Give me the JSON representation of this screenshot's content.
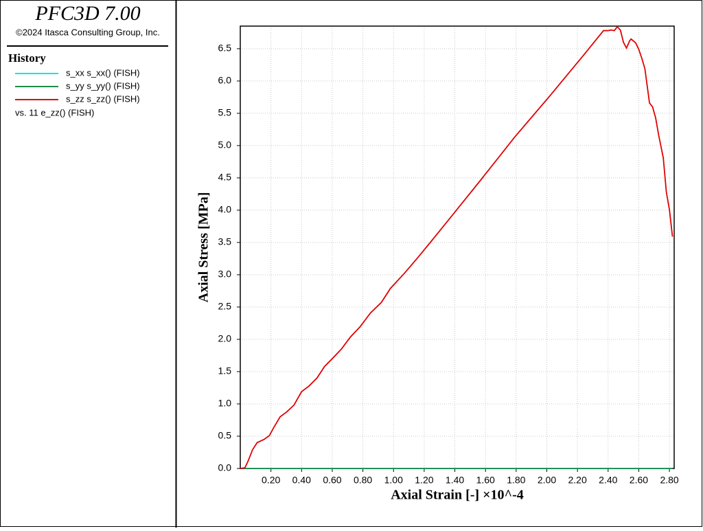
{
  "header": {
    "title": "PFC3D 7.00",
    "copyright": "©2024 Itasca Consulting Group, Inc."
  },
  "chart_data": {
    "type": "line",
    "legend_title": "History",
    "versus": "vs. 11 e_zz() (FISH)",
    "x_label": "Axial Strain [-] ×10^-4",
    "y_label": "Axial Stress [MPa]",
    "grid": true,
    "xlim": [
      0,
      2.831
    ],
    "ylim": [
      0,
      6.85
    ],
    "xticks": [
      {
        "value": 0.2,
        "label": "0.20"
      },
      {
        "value": 0.4,
        "label": "0.40"
      },
      {
        "value": 0.6,
        "label": "0.60"
      },
      {
        "value": 0.8,
        "label": "0.80"
      },
      {
        "value": 1.0,
        "label": "1.00"
      },
      {
        "value": 1.2,
        "label": "1.20"
      },
      {
        "value": 1.4,
        "label": "1.40"
      },
      {
        "value": 1.6,
        "label": "1.60"
      },
      {
        "value": 1.8,
        "label": "1.80"
      },
      {
        "value": 2.0,
        "label": "2.00"
      },
      {
        "value": 2.2,
        "label": "2.20"
      },
      {
        "value": 2.4,
        "label": "2.40"
      },
      {
        "value": 2.6,
        "label": "2.60"
      },
      {
        "value": 2.8,
        "label": "2.80"
      }
    ],
    "yticks": [
      {
        "value": 0,
        "label": "0.0"
      },
      0.5,
      {
        "value": 1,
        "label": "1.0"
      },
      1.5,
      {
        "value": 2,
        "label": "2.0"
      },
      2.5,
      {
        "value": 3,
        "label": "3.0"
      },
      3.5,
      {
        "value": 4,
        "label": "4.0"
      },
      4.5,
      {
        "value": 5,
        "label": "5.0"
      },
      5.5,
      {
        "value": 6,
        "label": "6.0"
      },
      6.5
    ],
    "x": [
      0,
      0.03,
      0.05,
      0.08,
      0.11,
      0.155,
      0.19,
      0.22,
      0.26,
      0.3,
      0.35,
      0.4,
      0.45,
      0.5,
      0.55,
      0.6,
      0.66,
      0.72,
      0.78,
      0.85,
      0.92,
      0.98,
      1.07,
      1.16,
      1.25,
      1.39,
      1.57,
      1.79,
      2.02,
      2.24,
      2.37,
      2.4,
      2.42,
      2.44,
      2.46,
      2.48,
      2.5,
      2.52,
      2.54,
      2.55,
      2.58,
      2.6,
      2.62,
      2.64,
      2.67,
      2.69,
      2.71,
      2.73,
      2.76,
      2.78,
      2.8,
      2.82
    ],
    "series": [
      {
        "name": "s_xx s_xx() (FISH)",
        "color": "#00e5ee",
        "values": [
          0,
          0,
          0,
          0,
          0,
          0,
          0,
          0,
          0,
          0,
          0,
          0,
          0,
          0,
          0,
          0,
          0,
          0,
          0,
          0,
          0,
          0,
          0,
          0,
          0,
          0,
          0,
          0,
          0,
          0,
          0,
          0,
          0,
          0,
          0,
          0,
          0,
          0,
          0,
          0,
          0,
          0,
          0,
          0,
          0,
          0,
          0,
          0,
          0,
          0,
          0,
          0
        ]
      },
      {
        "name": "s_yy s_yy() (FISH)",
        "color": "#1e8a4a",
        "values": [
          0,
          0,
          0,
          0,
          0,
          0,
          0,
          0,
          0,
          0,
          0,
          0,
          0,
          0,
          0,
          0,
          0,
          0,
          0,
          0,
          0,
          0,
          0,
          0,
          0,
          0,
          0,
          0,
          0,
          0,
          0,
          0,
          0,
          0,
          0,
          0,
          0,
          0,
          0,
          0,
          0,
          0,
          0,
          0,
          0,
          0,
          0,
          0,
          0,
          0,
          0,
          0
        ]
      },
      {
        "name": "s_zz s_zz() (FISH)",
        "color": "#e00000",
        "values": [
          0,
          0.01,
          0.11,
          0.29,
          0.4,
          0.45,
          0.51,
          0.64,
          0.8,
          0.87,
          0.98,
          1.19,
          1.28,
          1.4,
          1.58,
          1.7,
          1.85,
          2.04,
          2.19,
          2.41,
          2.57,
          2.79,
          3.02,
          3.27,
          3.53,
          3.94,
          4.47,
          5.13,
          5.77,
          6.4,
          6.78,
          6.78,
          6.79,
          6.78,
          6.84,
          6.79,
          6.6,
          6.51,
          6.62,
          6.65,
          6.59,
          6.49,
          6.35,
          6.19,
          5.66,
          5.6,
          5.43,
          5.16,
          4.81,
          4.28,
          4.01,
          3.59
        ]
      }
    ]
  }
}
